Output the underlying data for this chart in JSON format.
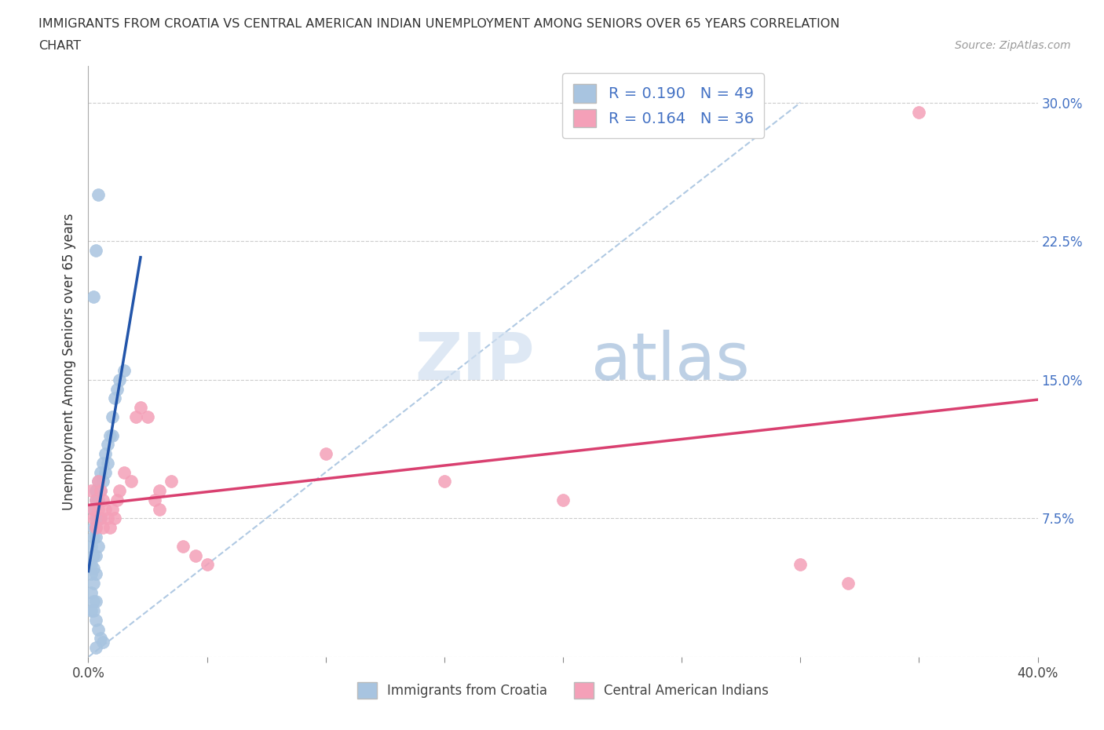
{
  "title_line1": "IMMIGRANTS FROM CROATIA VS CENTRAL AMERICAN INDIAN UNEMPLOYMENT AMONG SENIORS OVER 65 YEARS CORRELATION",
  "title_line2": "CHART",
  "source": "Source: ZipAtlas.com",
  "ylabel": "Unemployment Among Seniors over 65 years",
  "xlim": [
    0.0,
    0.4
  ],
  "ylim": [
    0.0,
    0.32
  ],
  "xtick_vals": [
    0.0,
    0.05,
    0.1,
    0.15,
    0.2,
    0.25,
    0.3,
    0.35,
    0.4
  ],
  "xtick_labels": [
    "0.0%",
    "",
    "",
    "",
    "",
    "",
    "",
    "",
    "40.0%"
  ],
  "ytick_vals": [
    0.0,
    0.075,
    0.15,
    0.225,
    0.3
  ],
  "ytick_labels": [
    "",
    "7.5%",
    "15.0%",
    "22.5%",
    "30.0%"
  ],
  "croatia_color": "#a8c4e0",
  "central_indian_color": "#f4a0b8",
  "croatia_line_color": "#2255aa",
  "central_indian_line_color": "#d94070",
  "croatia_R": 0.19,
  "croatia_N": 49,
  "central_indian_R": 0.164,
  "central_indian_N": 36,
  "legend_label_croatia": "R = 0.190   N = 49",
  "legend_label_central": "R = 0.164   N = 36",
  "bottom_label_croatia": "Immigrants from Croatia",
  "bottom_label_central": "Central American Indians",
  "watermark_zip": "ZIP",
  "watermark_atlas": "atlas",
  "source_text": "Source: ZipAtlas.com",
  "croatia_x": [
    0.001,
    0.001,
    0.001,
    0.001,
    0.001,
    0.002,
    0.002,
    0.002,
    0.002,
    0.002,
    0.002,
    0.002,
    0.003,
    0.003,
    0.003,
    0.003,
    0.003,
    0.003,
    0.003,
    0.003,
    0.004,
    0.004,
    0.004,
    0.004,
    0.005,
    0.005,
    0.005,
    0.006,
    0.006,
    0.007,
    0.007,
    0.008,
    0.008,
    0.009,
    0.01,
    0.01,
    0.011,
    0.012,
    0.013,
    0.015,
    0.002,
    0.003,
    0.004,
    0.002,
    0.003,
    0.004,
    0.005,
    0.006,
    0.003
  ],
  "croatia_y": [
    0.06,
    0.05,
    0.045,
    0.035,
    0.025,
    0.08,
    0.07,
    0.065,
    0.055,
    0.048,
    0.04,
    0.03,
    0.09,
    0.085,
    0.075,
    0.07,
    0.065,
    0.055,
    0.045,
    0.03,
    0.095,
    0.085,
    0.075,
    0.06,
    0.1,
    0.09,
    0.075,
    0.105,
    0.095,
    0.11,
    0.1,
    0.115,
    0.105,
    0.12,
    0.13,
    0.12,
    0.14,
    0.145,
    0.15,
    0.155,
    0.195,
    0.22,
    0.25,
    0.025,
    0.02,
    0.015,
    0.01,
    0.008,
    0.005
  ],
  "central_x": [
    0.001,
    0.002,
    0.002,
    0.003,
    0.003,
    0.004,
    0.004,
    0.005,
    0.005,
    0.006,
    0.006,
    0.007,
    0.008,
    0.009,
    0.01,
    0.011,
    0.012,
    0.013,
    0.015,
    0.018,
    0.02,
    0.022,
    0.025,
    0.028,
    0.03,
    0.03,
    0.035,
    0.04,
    0.045,
    0.05,
    0.1,
    0.15,
    0.2,
    0.3,
    0.32,
    0.35
  ],
  "central_y": [
    0.09,
    0.08,
    0.075,
    0.085,
    0.07,
    0.095,
    0.08,
    0.09,
    0.075,
    0.085,
    0.07,
    0.08,
    0.075,
    0.07,
    0.08,
    0.075,
    0.085,
    0.09,
    0.1,
    0.095,
    0.13,
    0.135,
    0.13,
    0.085,
    0.08,
    0.09,
    0.095,
    0.06,
    0.055,
    0.05,
    0.11,
    0.095,
    0.085,
    0.05,
    0.04,
    0.295
  ]
}
